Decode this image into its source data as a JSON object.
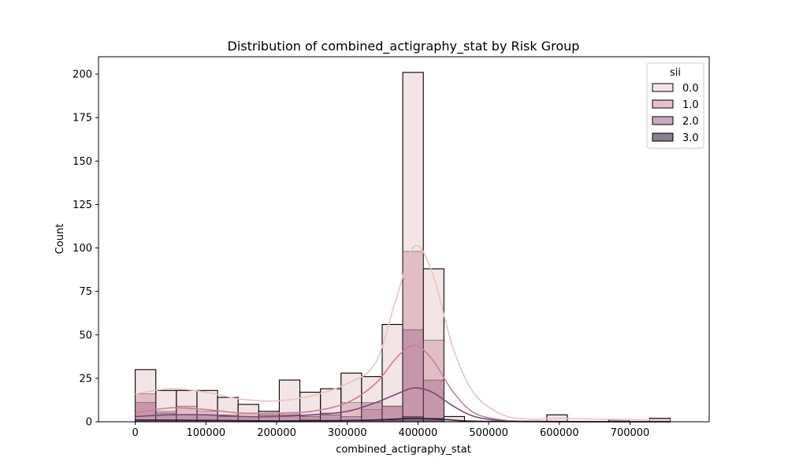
{
  "chart_data": {
    "type": "bar",
    "title": "Distribution of combined_actigraphy_stat by Risk Group",
    "xlabel": "combined_actigraphy_stat",
    "ylabel": "Count",
    "xlim": [
      -52000,
      812000
    ],
    "ylim": [
      0,
      210
    ],
    "xticks": [
      0,
      100000,
      200000,
      300000,
      400000,
      500000,
      600000,
      700000
    ],
    "xtick_labels": [
      "0",
      "100000",
      "200000",
      "300000",
      "400000",
      "500000",
      "600000",
      "700000"
    ],
    "yticks": [
      0,
      25,
      50,
      75,
      100,
      125,
      150,
      175,
      200
    ],
    "ytick_labels": [
      "0",
      "25",
      "50",
      "75",
      "100",
      "125",
      "150",
      "175",
      "200"
    ],
    "grid": false,
    "legend": {
      "title": "sii",
      "placement": "top-right"
    },
    "bin_edges": [
      0,
      29112,
      58224,
      87336,
      116448,
      145560,
      174672,
      203784,
      232896,
      262008,
      291120,
      320232,
      349344,
      378456,
      407568,
      436680,
      465792,
      494904,
      524016,
      553128,
      582240,
      611352,
      640464,
      669576,
      698688,
      727800,
      756912
    ],
    "series": [
      {
        "name": "0.0",
        "color": "#efdadb",
        "values": [
          30,
          18,
          18,
          18,
          14,
          10,
          6,
          24,
          17,
          19,
          28,
          26,
          56,
          201,
          88,
          3,
          0,
          0,
          0,
          0,
          4,
          0,
          0,
          1,
          0,
          2
        ],
        "kde_x": [
          0,
          50000,
          100000,
          150000,
          200000,
          250000,
          300000,
          340000,
          370000,
          395000,
          420000,
          450000,
          480000,
          520000,
          560000,
          600000,
          650000,
          700000,
          756912
        ],
        "kde_y": [
          16,
          19,
          17,
          13,
          12,
          15,
          22,
          34,
          72,
          101,
          86,
          42,
          16,
          4,
          1.5,
          2,
          1.5,
          1.2,
          1
        ]
      },
      {
        "name": "1.0",
        "color": "#d395a8",
        "values": [
          16,
          6,
          9,
          6,
          4,
          5,
          5,
          5,
          4,
          5,
          11,
          7,
          9,
          98,
          47,
          0,
          0,
          0,
          0,
          0,
          0,
          0,
          0,
          0,
          0,
          0
        ],
        "kde_x": [
          0,
          50000,
          100000,
          150000,
          200000,
          250000,
          300000,
          340000,
          370000,
          395000,
          420000,
          450000,
          480000,
          520000,
          560000,
          756912
        ],
        "kde_y": [
          5,
          8,
          7,
          5,
          5,
          6,
          11,
          22,
          37,
          44,
          36,
          17,
          5,
          1,
          0.3,
          0
        ]
      },
      {
        "name": "2.0",
        "color": "#a9708f",
        "values": [
          11,
          5,
          4,
          4,
          3,
          3,
          4,
          4,
          3,
          4,
          3,
          11,
          9,
          53,
          24,
          0,
          0,
          0,
          0,
          0,
          0,
          0,
          0,
          0,
          0,
          0
        ],
        "kde_x": [
          0,
          50000,
          100000,
          150000,
          200000,
          250000,
          300000,
          340000,
          370000,
          395000,
          420000,
          450000,
          480000,
          520000,
          560000,
          756912
        ],
        "kde_y": [
          3,
          4,
          4,
          3,
          3,
          4,
          6,
          11,
          16,
          19.5,
          17,
          9,
          3,
          0.5,
          0.1,
          0
        ]
      },
      {
        "name": "3.0",
        "color": "#3a2c45",
        "values": [
          1,
          1,
          1,
          1,
          0,
          0,
          0,
          0,
          1,
          0,
          0,
          1,
          1,
          3,
          2,
          0,
          0,
          0,
          0,
          0,
          0,
          0,
          0,
          0,
          0,
          0
        ],
        "kde_x": [
          0,
          100000,
          200000,
          300000,
          350000,
          395000,
          440000,
          500000,
          756912
        ],
        "kde_y": [
          1,
          0.8,
          0.5,
          0.7,
          1.2,
          2,
          1.2,
          0.2,
          0
        ]
      }
    ]
  }
}
